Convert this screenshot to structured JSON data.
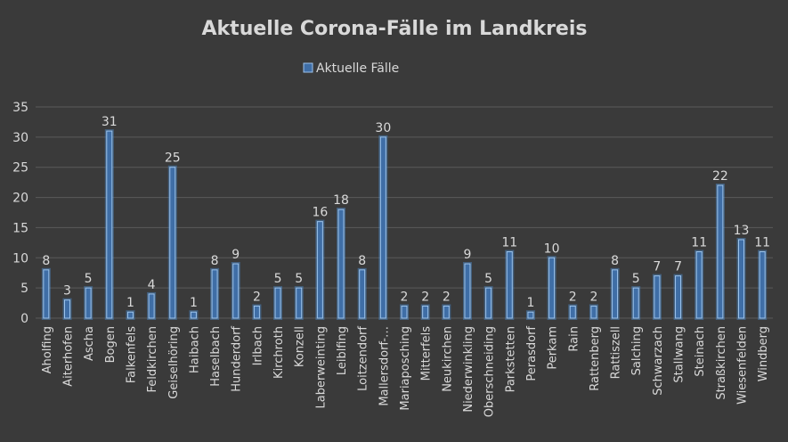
{
  "chart_data": {
    "type": "bar",
    "title": "Aktuelle Corona-Fälle im Landkreis",
    "legend": "top",
    "grid": true,
    "ylim": [
      0,
      35
    ],
    "yticks": [
      0,
      5,
      10,
      15,
      20,
      25,
      30,
      35
    ],
    "categories": [
      "Aholfing",
      "Aiterhofen",
      "Ascha",
      "Bogen",
      "Falkenfels",
      "Feldkirchen",
      "Geiselhöring",
      "Haibach",
      "Haselbach",
      "Hunderdorf",
      "Irlbach",
      "Kirchroth",
      "Konzell",
      "Laberweinting",
      "Leiblfing",
      "Loitzendorf",
      "Mallersdorf-…",
      "Mariaposching",
      "Mitterfels",
      "Neukirchen",
      "Niederwinkling",
      "Oberschneiding",
      "Parkstetten",
      "Perasdorf",
      "Perkam",
      "Rain",
      "Rattenberg",
      "Rattiszell",
      "Salching",
      "Schwarzach",
      "Stallwang",
      "Steinach",
      "Straßkirchen",
      "Wiesenfelden",
      "Windberg"
    ],
    "series": [
      {
        "name": "Aktuelle Fälle",
        "color": "#4f92d8",
        "values": [
          8,
          3,
          5,
          31,
          1,
          4,
          25,
          1,
          8,
          9,
          2,
          5,
          5,
          16,
          18,
          8,
          30,
          2,
          2,
          2,
          9,
          5,
          11,
          1,
          10,
          2,
          2,
          8,
          5,
          7,
          7,
          11,
          22,
          13,
          11
        ]
      }
    ]
  }
}
